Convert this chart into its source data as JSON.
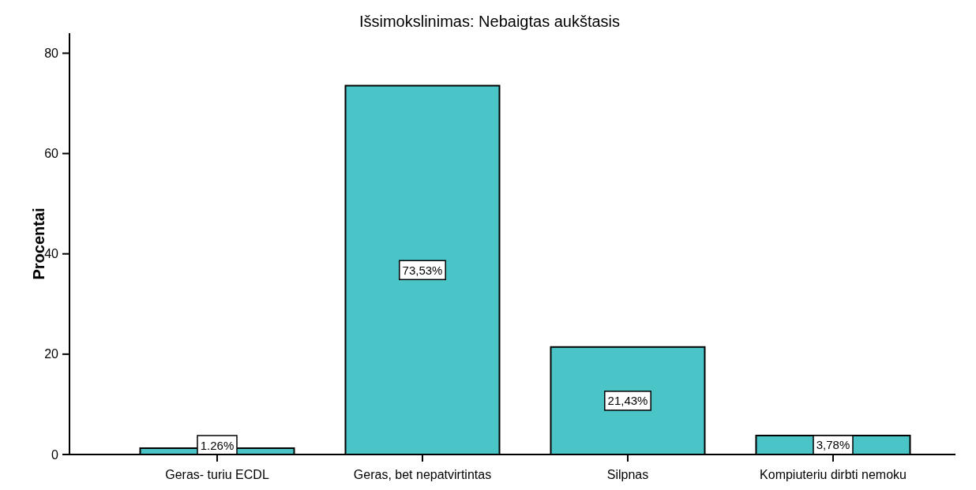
{
  "chart_data": {
    "type": "bar",
    "title": "Išsimokslinimas: Nebaigtas aukštasis",
    "ylabel": "Procentai",
    "categories": [
      "Geras- turiu ECDL",
      "Geras, bet nepatvirtintas",
      "Silpnas",
      "Kompiuteriu dirbti nemoku"
    ],
    "values": [
      1.26,
      73.53,
      21.43,
      3.78
    ],
    "value_labels": [
      "1.26%",
      "73,53%",
      "21,43%",
      "3,78%"
    ],
    "color": "#4bc4c7",
    "ylim": [
      0,
      84
    ],
    "yticks": [
      0,
      20,
      40,
      60,
      80
    ],
    "grid": false
  }
}
